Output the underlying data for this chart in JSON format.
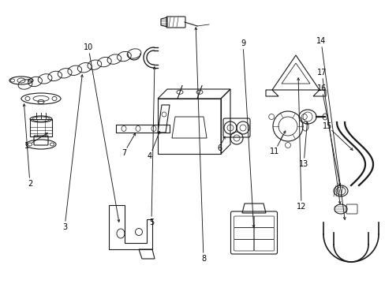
{
  "bg_color": "#ffffff",
  "line_color": "#1a1a1a",
  "text_color": "#000000",
  "figsize": [
    4.89,
    3.6
  ],
  "dpi": 100,
  "lw": 0.8
}
